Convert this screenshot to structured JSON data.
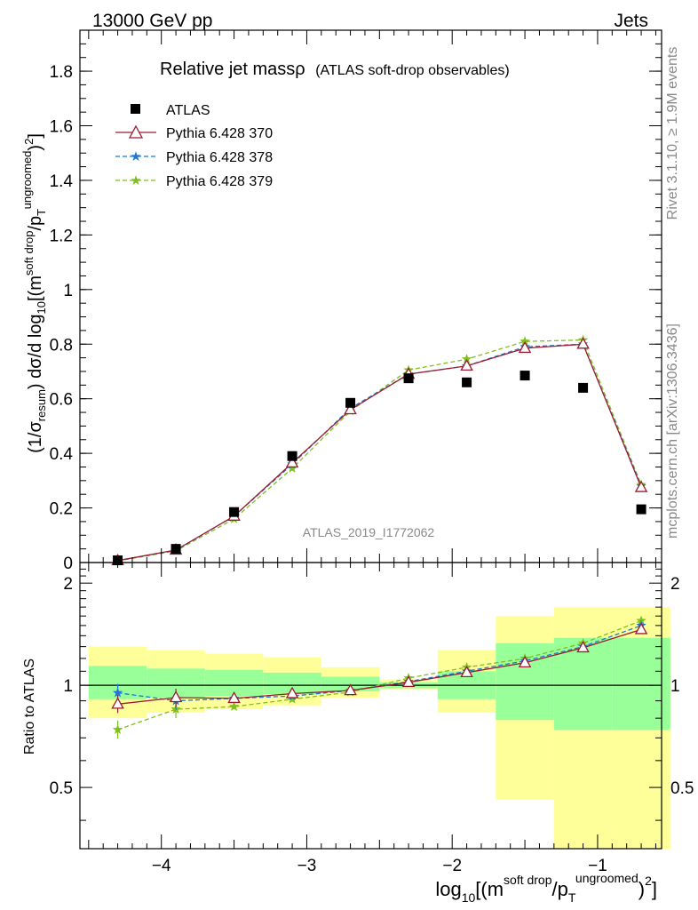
{
  "header": {
    "left": "13000 GeV pp",
    "right": "Jets"
  },
  "side_labels": {
    "rivet": "Rivet 3.1.10, ≥ 1.9M events",
    "mcplots": "mcplots.cern.ch [arXiv:1306.3436]"
  },
  "colors": {
    "atlas": "#000000",
    "pythia370": "#9b1b30",
    "pythia378": "#1f77d4",
    "pythia379": "#7fbf1f",
    "band_inner": "#99ff99",
    "band_outer": "#ffff99"
  },
  "chart_data": [
    {
      "type": "line",
      "title_main": "Relative jet massρ",
      "title_sub": "(ATLAS soft-drop observables)",
      "watermark": "ATLAS_2019_I1772062",
      "ylabel": "(1/σ_resum) dσ/d log10[(m^soft drop/p_T^ungroomed)^2]",
      "xlim": [
        -4.56,
        -0.56
      ],
      "ylim": [
        0,
        1.95
      ],
      "yticks": [
        0,
        0.2,
        0.4,
        0.6,
        0.8,
        1,
        1.2,
        1.4,
        1.6,
        1.8
      ],
      "ytick_labels": [
        "0",
        "0.2",
        "0.4",
        "0.6",
        "0.8",
        "1",
        "1.2",
        "1.4",
        "1.6",
        "1.8"
      ],
      "legend_position": "top-left",
      "x": [
        -4.3,
        -3.9,
        -3.5,
        -3.1,
        -2.7,
        -2.3,
        -1.9,
        -1.5,
        -1.1,
        -0.7
      ],
      "series": [
        {
          "name": "ATLAS",
          "marker": "square",
          "values": [
            0.008,
            0.05,
            0.185,
            0.39,
            0.585,
            0.675,
            0.66,
            0.685,
            0.64,
            0.195
          ]
        },
        {
          "name": "Pythia 6.428 370",
          "marker": "triangle",
          "values": [
            0.007,
            0.046,
            0.17,
            0.365,
            0.56,
            0.69,
            0.72,
            0.785,
            0.8,
            0.275
          ]
        },
        {
          "name": "Pythia 6.428 378",
          "marker": "star",
          "values": [
            0.007,
            0.045,
            0.17,
            0.36,
            0.565,
            0.69,
            0.72,
            0.79,
            0.8,
            0.28
          ]
        },
        {
          "name": "Pythia 6.428 379",
          "marker": "star",
          "values": [
            0.006,
            0.043,
            0.16,
            0.345,
            0.555,
            0.705,
            0.745,
            0.81,
            0.815,
            0.285
          ]
        }
      ]
    },
    {
      "type": "line",
      "ylabel": "Ratio to ATLAS",
      "xlabel": "log10[(m^soft drop/p_T^ungroomed)^2]",
      "xlim": [
        -4.56,
        -0.56
      ],
      "ylim": [
        0.33,
        2.3
      ],
      "yscale": "log",
      "yticks": [
        0.5,
        1,
        2
      ],
      "ytick_labels": [
        "0.5",
        "1",
        "2"
      ],
      "xticks": [
        -4,
        -3,
        -2,
        -1
      ],
      "xtick_labels": [
        "−4",
        "−3",
        "−2",
        "−1"
      ],
      "reference_line": 1,
      "bins": [
        [
          -4.5,
          -4.1
        ],
        [
          -4.1,
          -3.7
        ],
        [
          -3.7,
          -3.3
        ],
        [
          -3.3,
          -2.9
        ],
        [
          -2.9,
          -2.5
        ],
        [
          -2.5,
          -2.1
        ],
        [
          -2.1,
          -1.7
        ],
        [
          -1.7,
          -1.3
        ],
        [
          -1.3,
          -0.9
        ],
        [
          -0.9,
          -0.5
        ]
      ],
      "band_inner": [
        [
          0.91,
          1.14
        ],
        [
          0.92,
          1.12
        ],
        [
          0.93,
          1.11
        ],
        [
          0.94,
          1.09
        ],
        [
          0.96,
          1.06
        ],
        [
          0.98,
          1.02
        ],
        [
          0.91,
          1.1
        ],
        [
          0.79,
          1.33
        ],
        [
          0.74,
          1.38
        ],
        [
          0.74,
          1.38
        ]
      ],
      "band_outer": [
        [
          0.8,
          1.3
        ],
        [
          0.83,
          1.27
        ],
        [
          0.85,
          1.24
        ],
        [
          0.87,
          1.21
        ],
        [
          0.92,
          1.13
        ],
        [
          0.97,
          1.04
        ],
        [
          0.83,
          1.27
        ],
        [
          0.46,
          1.6
        ],
        [
          0.33,
          1.7
        ],
        [
          0.33,
          1.7
        ]
      ],
      "x": [
        -4.3,
        -3.9,
        -3.5,
        -3.1,
        -2.7,
        -2.3,
        -1.9,
        -1.5,
        -1.1,
        -0.7
      ],
      "series": [
        {
          "name": "Pythia 6.428 370",
          "marker": "triangle",
          "values": [
            0.88,
            0.92,
            0.915,
            0.945,
            0.965,
            1.02,
            1.09,
            1.165,
            1.29,
            1.46
          ]
        },
        {
          "name": "Pythia 6.428 378",
          "marker": "star",
          "values": [
            0.95,
            0.9,
            0.915,
            0.93,
            0.965,
            1.025,
            1.1,
            1.18,
            1.3,
            1.5
          ]
        },
        {
          "name": "Pythia 6.428 379",
          "marker": "star",
          "values": [
            0.74,
            0.85,
            0.865,
            0.91,
            0.955,
            1.05,
            1.13,
            1.2,
            1.33,
            1.55
          ]
        }
      ]
    }
  ]
}
